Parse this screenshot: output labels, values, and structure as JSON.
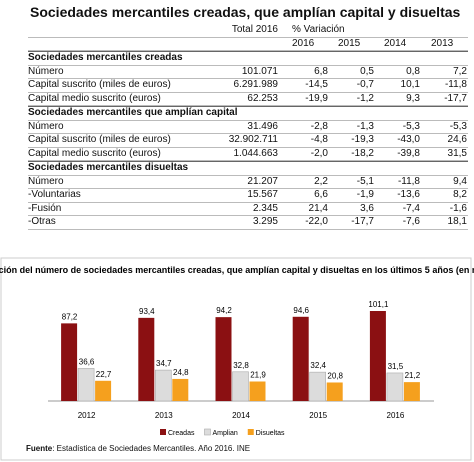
{
  "title": "Sociedades mercantiles creadas, que amplían capital y disueltas",
  "table": {
    "header": {
      "total": "Total 2016",
      "variation": "% Variación",
      "years": [
        "2016",
        "2015",
        "2014",
        "2013"
      ]
    },
    "sections": [
      {
        "title": "Sociedades mercantiles creadas",
        "rows": [
          [
            "Número",
            "101.071",
            "6,8",
            "0,5",
            "0,8",
            "7,2"
          ],
          [
            "Capital suscrito (miles de euros)",
            "6.291.989",
            "-14,5",
            "-0,7",
            "10,1",
            "-11,8"
          ],
          [
            "Capital medio suscrito (euros)",
            "62.253",
            "-19,9",
            "-1,2",
            "9,3",
            "-17,7"
          ]
        ]
      },
      {
        "title": "Sociedades mercantiles que amplían capital",
        "rows": [
          [
            "Número",
            "31.496",
            "-2,8",
            "-1,3",
            "-5,3",
            "-5,3"
          ],
          [
            "Capital suscrito (miles de euros)",
            "32.902.711",
            "-4,8",
            "-19,3",
            "-43,0",
            "24,6"
          ],
          [
            "Capital medio suscrito (euros)",
            "1.044.663",
            "-2,0",
            "-18,2",
            "-39,8",
            "31,5"
          ]
        ]
      },
      {
        "title": "Sociedades mercantiles disueltas",
        "rows": [
          [
            "Número",
            "21.207",
            "2,2",
            "-5,1",
            "-11,8",
            "9,4"
          ],
          [
            "-Voluntarias",
            "15.567",
            "6,6",
            "-1,9",
            "-13,6",
            "8,2"
          ],
          [
            "-Fusión",
            "2.345",
            "21,4",
            "3,6",
            "-7,4",
            "-1,6"
          ],
          [
            "-Otras",
            "3.295",
            "-22,0",
            "-17,7",
            "-7,6",
            "18,1"
          ]
        ]
      }
    ]
  },
  "chart_data": {
    "type": "bar",
    "title": "Evolución del número de sociedades mercantiles creadas, que amplían capital  y disueltas en los últimos 5 años (en miles)",
    "categories": [
      "2012",
      "2013",
      "2014",
      "2015",
      "2016"
    ],
    "series": [
      {
        "name": "Creadas",
        "color": "#8b1012",
        "values": [
          87.2,
          93.4,
          94.2,
          94.6,
          101.1
        ],
        "value_labels": [
          "87,2",
          "93,4",
          "94,2",
          "94,6",
          "101,1"
        ]
      },
      {
        "name": "Amplian",
        "color": "#dcdcdc",
        "values": [
          36.6,
          34.7,
          32.8,
          32.4,
          31.5
        ],
        "value_labels": [
          "36,6",
          "34,7",
          "32,8",
          "32,4",
          "31,5"
        ]
      },
      {
        "name": "Disueltas",
        "color": "#f5a01e",
        "values": [
          22.7,
          24.8,
          21.9,
          20.8,
          21.2
        ],
        "value_labels": [
          "22,7",
          "24,8",
          "21,9",
          "20,8",
          "21,2"
        ]
      }
    ]
  },
  "footer": {
    "label": "Fuente",
    "text": ": Estadística de Sociedades Mercantiles. Año 2016. INE"
  }
}
